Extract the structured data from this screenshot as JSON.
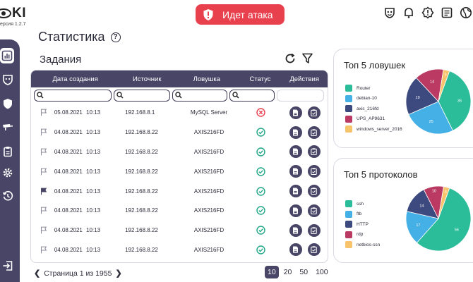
{
  "app": {
    "logo_text": "KI",
    "version": "ерсия 1.2.7"
  },
  "attack_banner": {
    "label": "Идет атака",
    "color": "#e8404d"
  },
  "top_icons": [
    "mask-icon",
    "bell-icon",
    "alert-icon",
    "list-icon",
    "globe-icon"
  ],
  "sidebar": {
    "items": [
      "dashboard-icon",
      "mask-icon",
      "shield-icon",
      "camera-icon",
      "clipboard-icon",
      "settings-icon",
      "history-icon",
      "logout-icon"
    ],
    "active_index": 0
  },
  "page": {
    "title": "Статистика",
    "help": "?"
  },
  "tasks": {
    "title": "Задания",
    "columns": {
      "date": "Дата создания",
      "source": "Источник",
      "trap": "Ловушка",
      "status": "Статус",
      "actions": "Действия"
    },
    "rows": [
      {
        "date": "05.08.2021",
        "time": "10:13",
        "source": "192.168.8.1",
        "trap": "MySQL Server",
        "status": "error",
        "flagged": false
      },
      {
        "date": "04.08.2021",
        "time": "10:13",
        "source": "192.168.8.22",
        "trap": "AXIS216FD",
        "status": "ok",
        "flagged": false
      },
      {
        "date": "04.08.2021",
        "time": "10:13",
        "source": "192.168.8.22",
        "trap": "AXIS216FD",
        "status": "ok",
        "flagged": false
      },
      {
        "date": "04.08.2021",
        "time": "10:13",
        "source": "192.168.8.22",
        "trap": "AXIS216FD",
        "status": "ok",
        "flagged": false
      },
      {
        "date": "04.08.2021",
        "time": "10:13",
        "source": "192.168.8.22",
        "trap": "AXIS216FD",
        "status": "ok",
        "flagged": true
      },
      {
        "date": "04.08.2021",
        "time": "10:13",
        "source": "192.168.8.22",
        "trap": "AXIS216FD",
        "status": "ok",
        "flagged": false
      },
      {
        "date": "04.08.2021",
        "time": "10:13",
        "source": "192.168.8.22",
        "trap": "AXIS216FD",
        "status": "ok",
        "flagged": false
      },
      {
        "date": "04.08.2021",
        "time": "10:13",
        "source": "192.168.8.22",
        "trap": "AXIS216FD",
        "status": "ok",
        "flagged": false
      }
    ],
    "pagination": {
      "label": "Страница 1 из 1955",
      "page_sizes": [
        "10",
        "20",
        "50",
        "100"
      ],
      "selected_size": "10"
    }
  },
  "colors": {
    "primary": "#484566",
    "ok": "#23a889",
    "error": "#e8404d"
  },
  "top_traps": {
    "title": "Топ 5 ловушек",
    "items": [
      {
        "name": "Router",
        "value": 36,
        "color": "#2bbd9a"
      },
      {
        "name": "debian-10",
        "value": 25,
        "color": "#45b0e6"
      },
      {
        "name": "axis_216fd",
        "value": 19,
        "color": "#3d4a7f"
      },
      {
        "name": "UPS_AP9631",
        "value": 14,
        "color": "#bb3a63"
      },
      {
        "name": "windows_server_2016",
        "value": 3,
        "color": "#f7c46c"
      }
    ]
  },
  "top_protocols": {
    "title": "Топ 5 протоколов",
    "items": [
      {
        "name": "ssh",
        "value": 56,
        "color": "#2bbd9a"
      },
      {
        "name": "ftb",
        "value": 17,
        "color": "#45b0e6"
      },
      {
        "name": "HTTP",
        "value": 14,
        "color": "#3d4a7f"
      },
      {
        "name": "rdp",
        "value": 10,
        "color": "#bb3a63"
      },
      {
        "name": "netbios-ssn",
        "value": 3,
        "color": "#f7c46c"
      }
    ]
  }
}
